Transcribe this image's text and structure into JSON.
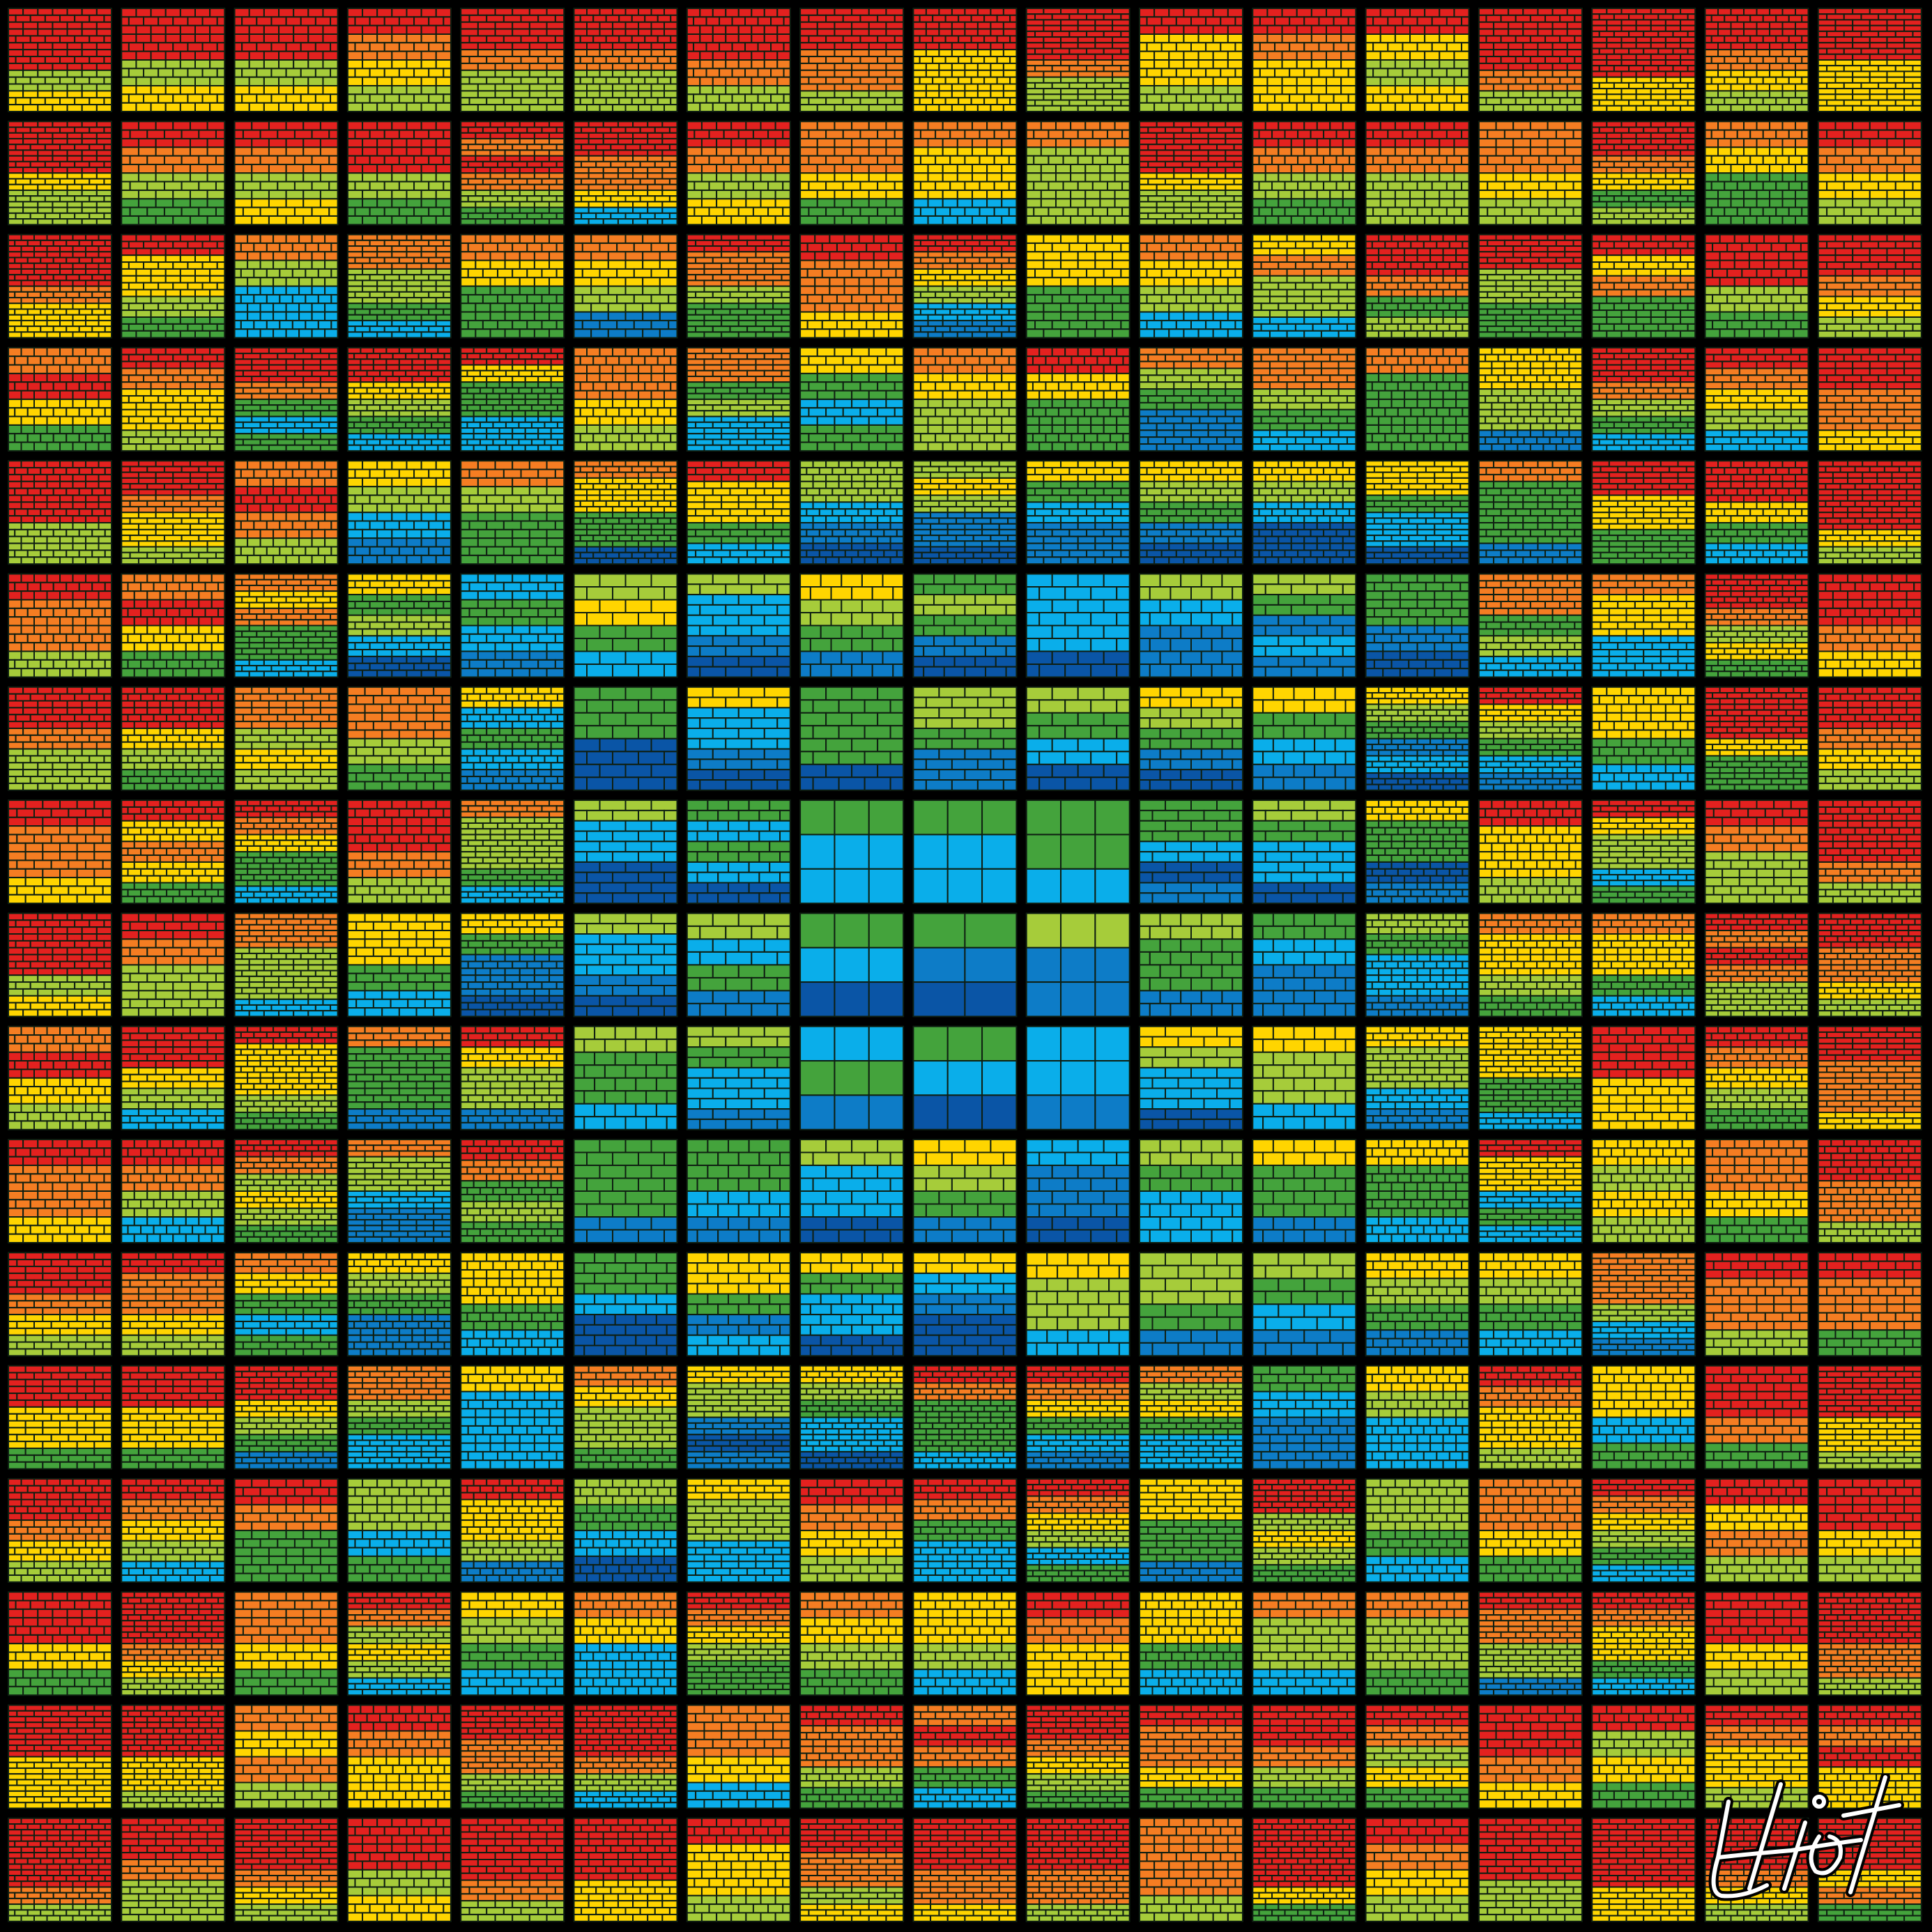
{
  "artwork": {
    "grid": {
      "rows": 17,
      "cols": 17
    },
    "background": "#000000",
    "palette": {
      "navy": "#0a55a6",
      "blue": "#0d7cc7",
      "sky": "#0aaeea",
      "green": "#44a33c",
      "lime": "#a6cc3a",
      "yellow": "#ffd500",
      "orange": "#f57d22",
      "red": "#e3211f",
      "grout": "#0f1f12"
    },
    "band_sequence": [
      "navy",
      "blue",
      "sky",
      "green",
      "lime",
      "yellow",
      "orange",
      "red"
    ],
    "pattern": "concentric",
    "center": {
      "row": 8,
      "col": 8
    },
    "signature": "Eliot"
  }
}
